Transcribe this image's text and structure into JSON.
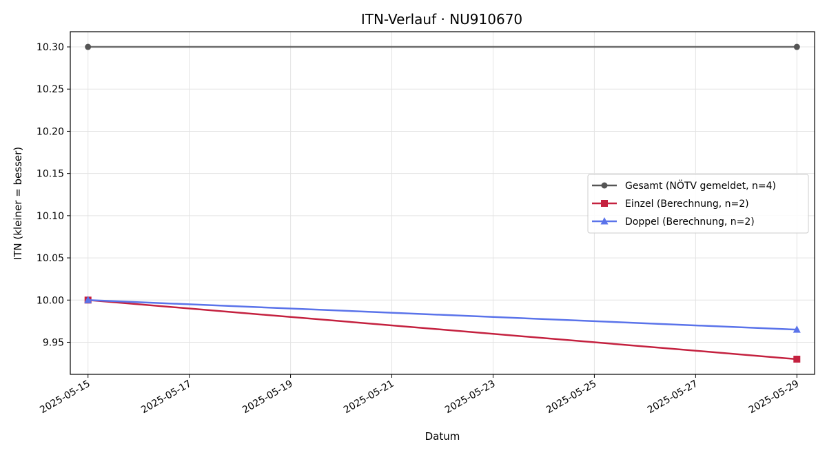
{
  "chart_data": {
    "type": "line",
    "title": "ITN-Verlauf · NU910670",
    "xlabel": "Datum",
    "ylabel": "ITN  (kleiner = besser)",
    "x_ticks": [
      "2025-05-15",
      "2025-05-17",
      "2025-05-19",
      "2025-05-21",
      "2025-05-23",
      "2025-05-25",
      "2025-05-27",
      "2025-05-29"
    ],
    "y_ticks": [
      "9.95",
      "10.00",
      "10.05",
      "10.10",
      "10.15",
      "10.20",
      "10.25",
      "10.30"
    ],
    "xlim": [
      "2025-05-14.65",
      "2025-05-29.35"
    ],
    "ylim": [
      9.912,
      10.318
    ],
    "grid": true,
    "legend_position": "center-right",
    "series": [
      {
        "name": "Gesamt (NÖTV gemeldet, n=4)",
        "x": [
          "2025-05-15",
          "2025-05-29"
        ],
        "values": [
          10.3,
          10.3
        ],
        "color": "#555555",
        "marker": "circle"
      },
      {
        "name": "Einzel (Berechnung, n=2)",
        "x": [
          "2025-05-15",
          "2025-05-29"
        ],
        "values": [
          10.0,
          9.93
        ],
        "color": "#c4213f",
        "marker": "square"
      },
      {
        "name": "Doppel (Berechnung, n=2)",
        "x": [
          "2025-05-15",
          "2025-05-29"
        ],
        "values": [
          10.0,
          9.965
        ],
        "color": "#5a73ea",
        "marker": "triangle"
      }
    ]
  }
}
